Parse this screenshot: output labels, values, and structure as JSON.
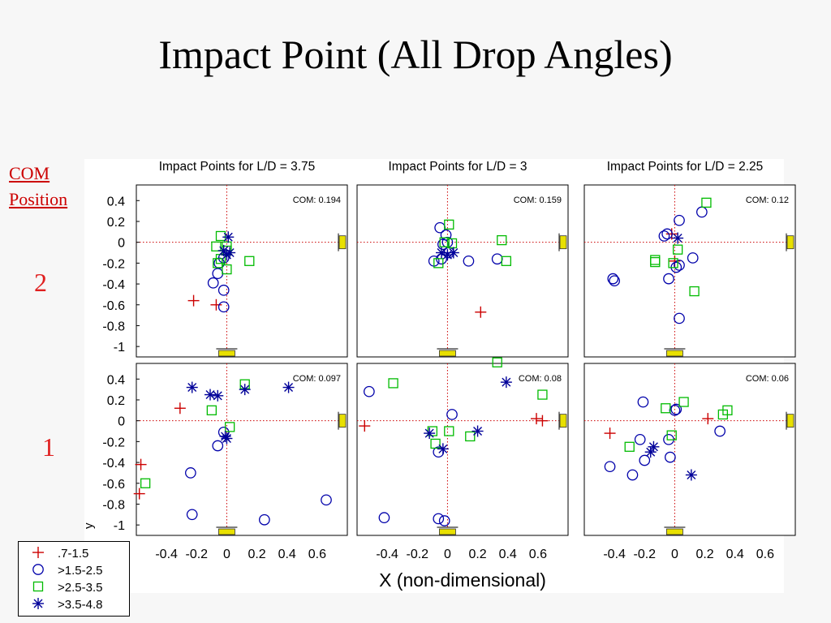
{
  "slide": {
    "title": "Impact Point (All Drop Angles)",
    "com_label_line1": "COM",
    "com_label_line2": "Position",
    "row_labels": [
      "2",
      "1"
    ]
  },
  "figure": {
    "x_label": "X (non-dimensional)",
    "y_label_fragment": "y"
  },
  "legend": {
    "entries": [
      {
        "label": ".7-1.5",
        "marker": "plus",
        "color": "#cc0000"
      },
      {
        "label": ">1.5-2.5",
        "marker": "circle",
        "color": "#0000aa"
      },
      {
        "label": ">2.5-3.5",
        "marker": "square",
        "color": "#00bb00"
      },
      {
        "label": ">3.5-4.8",
        "marker": "star",
        "color": "#000099"
      }
    ]
  },
  "colors": {
    "plus": "#cc0000",
    "circle": "#0000aa",
    "square": "#00bb00",
    "star": "#000099",
    "fixture": "#e8e000",
    "reference_line": "#cc0000"
  },
  "chart_data": {
    "type": "scatter",
    "xlim": [
      -0.6,
      0.8
    ],
    "ylim": [
      -1.1,
      0.55
    ],
    "x_ticks": [
      -0.4,
      -0.2,
      0,
      0.2,
      0.4,
      0.6
    ],
    "x_tick_labels": [
      "-0.4",
      "-0.2",
      "0",
      "0.2",
      "0.4",
      "0.6"
    ],
    "y_ticks": [
      0.4,
      0.2,
      0,
      -0.2,
      -0.4,
      -0.6,
      -0.8,
      -1
    ],
    "y_tick_labels": [
      "0.4",
      "0.2",
      "0",
      "-0.2",
      "-0.4",
      "-0.6",
      "-0.8",
      "-1"
    ],
    "column_titles": [
      "Impact Points for L/D = 3.75",
      "Impact Points for L/D = 3",
      "Impact Points for L/D = 2.25"
    ],
    "panels": [
      {
        "row": 0,
        "col": 0,
        "com_text": "COM: 0.194",
        "points": {
          "plus": [
            [
              -0.22,
              -0.56
            ],
            [
              -0.07,
              -0.6
            ]
          ],
          "circle": [
            [
              -0.09,
              -0.39
            ],
            [
              -0.06,
              -0.3
            ],
            [
              -0.02,
              -0.46
            ],
            [
              -0.02,
              -0.62
            ],
            [
              -0.02,
              -0.15
            ],
            [
              -0.05,
              -0.2
            ]
          ],
          "square": [
            [
              -0.04,
              0.06
            ],
            [
              -0.07,
              -0.04
            ],
            [
              0.0,
              -0.04
            ],
            [
              0.0,
              -0.26
            ],
            [
              -0.06,
              -0.2
            ],
            [
              -0.04,
              -0.16
            ],
            [
              0.15,
              -0.18
            ],
            [
              0.0,
              -0.08
            ]
          ],
          "star": [
            [
              0.01,
              0.05
            ],
            [
              -0.02,
              -0.08
            ],
            [
              0.0,
              -0.12
            ],
            [
              0.02,
              -0.1
            ]
          ]
        }
      },
      {
        "row": 0,
        "col": 1,
        "com_text": "COM: 0.159",
        "points": {
          "plus": [
            [
              0.22,
              -0.67
            ]
          ],
          "circle": [
            [
              -0.05,
              0.14
            ],
            [
              -0.01,
              0.07
            ],
            [
              0.0,
              0.0
            ],
            [
              -0.03,
              -0.02
            ],
            [
              -0.04,
              -0.16
            ],
            [
              0.01,
              -0.1
            ],
            [
              -0.09,
              -0.18
            ],
            [
              0.14,
              -0.18
            ],
            [
              0.33,
              -0.16
            ]
          ],
          "square": [
            [
              0.01,
              0.17
            ],
            [
              0.03,
              -0.01
            ],
            [
              -0.02,
              0.0
            ],
            [
              0.36,
              0.02
            ],
            [
              0.39,
              -0.18
            ],
            [
              -0.06,
              -0.2
            ]
          ],
          "star": [
            [
              0.0,
              -0.12
            ],
            [
              0.04,
              -0.1
            ],
            [
              -0.04,
              -0.1
            ]
          ]
        }
      },
      {
        "row": 0,
        "col": 2,
        "com_text": "COM: 0.12",
        "points": {
          "plus": [
            [
              0.0,
              -0.18
            ],
            [
              -0.02,
              0.08
            ]
          ],
          "circle": [
            [
              0.03,
              0.21
            ],
            [
              -0.05,
              0.08
            ],
            [
              -0.07,
              0.06
            ],
            [
              0.18,
              0.29
            ],
            [
              -0.41,
              -0.35
            ],
            [
              -0.4,
              -0.37
            ],
            [
              -0.04,
              -0.35
            ],
            [
              0.12,
              -0.15
            ],
            [
              0.01,
              -0.24
            ],
            [
              0.03,
              -0.22
            ],
            [
              0.03,
              -0.73
            ]
          ],
          "square": [
            [
              0.21,
              0.38
            ],
            [
              0.13,
              -0.47
            ],
            [
              -0.13,
              -0.19
            ],
            [
              -0.13,
              -0.17
            ],
            [
              0.02,
              -0.07
            ],
            [
              -0.01,
              -0.2
            ]
          ],
          "star": [
            [
              0.02,
              0.04
            ]
          ]
        }
      },
      {
        "row": 1,
        "col": 0,
        "com_text": "COM: 0.097",
        "points": {
          "plus": [
            [
              -0.31,
              0.12
            ],
            [
              -0.57,
              -0.42
            ],
            [
              -0.58,
              -0.7
            ]
          ],
          "circle": [
            [
              -0.06,
              -0.24
            ],
            [
              -0.02,
              -0.11
            ],
            [
              -0.24,
              -0.5
            ],
            [
              -0.23,
              -0.9
            ],
            [
              0.25,
              -0.95
            ],
            [
              0.66,
              -0.76
            ]
          ],
          "square": [
            [
              0.12,
              0.35
            ],
            [
              -0.1,
              0.1
            ],
            [
              0.02,
              -0.06
            ],
            [
              -0.54,
              -0.6
            ]
          ],
          "star": [
            [
              -0.23,
              0.32
            ],
            [
              -0.11,
              0.25
            ],
            [
              -0.06,
              0.24
            ],
            [
              0.12,
              0.3
            ],
            [
              0.41,
              0.32
            ],
            [
              0.0,
              -0.17
            ],
            [
              -0.01,
              -0.15
            ]
          ]
        }
      },
      {
        "row": 1,
        "col": 1,
        "com_text": "COM: 0.08",
        "points": {
          "plus": [
            [
              -0.55,
              -0.05
            ],
            [
              0.59,
              0.02
            ],
            [
              0.63,
              0.0
            ]
          ],
          "circle": [
            [
              -0.52,
              0.28
            ],
            [
              -0.42,
              -0.93
            ],
            [
              -0.06,
              -0.94
            ],
            [
              -0.02,
              -0.96
            ],
            [
              0.03,
              0.06
            ],
            [
              -0.06,
              -0.3
            ]
          ],
          "square": [
            [
              -0.36,
              0.36
            ],
            [
              0.33,
              0.56
            ],
            [
              0.63,
              0.25
            ],
            [
              0.15,
              -0.15
            ],
            [
              0.01,
              -0.1
            ],
            [
              -0.1,
              -0.1
            ],
            [
              -0.08,
              -0.22
            ]
          ],
          "star": [
            [
              0.39,
              0.37
            ],
            [
              -0.12,
              -0.12
            ],
            [
              0.2,
              -0.1
            ],
            [
              -0.03,
              -0.27
            ]
          ]
        }
      },
      {
        "row": 1,
        "col": 2,
        "com_text": "COM: 0.06",
        "points": {
          "plus": [
            [
              0.22,
              0.02
            ],
            [
              -0.43,
              -0.12
            ]
          ],
          "circle": [
            [
              -0.21,
              0.18
            ],
            [
              -0.43,
              -0.44
            ],
            [
              -0.28,
              -0.52
            ],
            [
              -0.2,
              -0.38
            ],
            [
              -0.23,
              -0.18
            ],
            [
              -0.04,
              -0.18
            ],
            [
              -0.03,
              -0.35
            ],
            [
              0.3,
              -0.1
            ],
            [
              0.01,
              0.11
            ],
            [
              0.0,
              0.1
            ]
          ],
          "square": [
            [
              0.06,
              0.18
            ],
            [
              -0.06,
              0.12
            ],
            [
              0.35,
              0.1
            ],
            [
              0.32,
              0.06
            ],
            [
              -0.3,
              -0.25
            ],
            [
              -0.02,
              -0.14
            ]
          ],
          "star": [
            [
              0.11,
              -0.52
            ],
            [
              -0.14,
              -0.25
            ],
            [
              -0.16,
              -0.3
            ]
          ]
        }
      }
    ]
  }
}
